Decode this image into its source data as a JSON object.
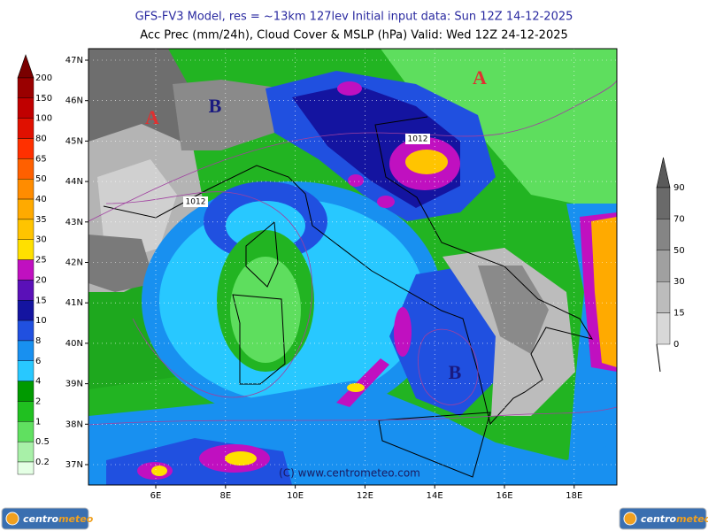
{
  "header": {
    "line1": "GFS-FV3 Model, res = ~13km 127lev    Initial input data: Sun 12Z 14-12-2025",
    "line2": "Acc Prec (mm/24h), Cloud Cover & MSLP (hPa)  Valid: Wed 12Z 24-12-2025"
  },
  "precip_legend": {
    "top_color": "#7a0000",
    "levels": [
      {
        "value": 200,
        "color": "#9a0000"
      },
      {
        "value": 150,
        "color": "#c00000"
      },
      {
        "value": 100,
        "color": "#e01000"
      },
      {
        "value": 80,
        "color": "#ff3000"
      },
      {
        "value": 65,
        "color": "#ff6000"
      },
      {
        "value": 50,
        "color": "#ff8c00"
      },
      {
        "value": 40,
        "color": "#ffaa00"
      },
      {
        "value": 35,
        "color": "#ffc400"
      },
      {
        "value": 30,
        "color": "#ffe000"
      },
      {
        "value": 25,
        "color": "#c010c0"
      },
      {
        "value": 20,
        "color": "#5a10b8"
      },
      {
        "value": 15,
        "color": "#1414a0"
      },
      {
        "value": 10,
        "color": "#2050e0"
      },
      {
        "value": 8,
        "color": "#1890f0"
      },
      {
        "value": 6,
        "color": "#28c8ff"
      },
      {
        "value": 4,
        "color": "#009a00"
      },
      {
        "value": 2,
        "color": "#20c020"
      },
      {
        "value": 1,
        "color": "#60e060"
      },
      {
        "value": 0.5,
        "color": "#a8f0a8"
      },
      {
        "value": 0.2,
        "color": "#e4ffe4"
      }
    ]
  },
  "cloud_legend": {
    "top_color": "#5a5a5a",
    "levels": [
      {
        "value": 90,
        "color": "#6a6a6a"
      },
      {
        "value": 70,
        "color": "#858585"
      },
      {
        "value": 50,
        "color": "#a0a0a0"
      },
      {
        "value": 30,
        "color": "#bcbcbc"
      },
      {
        "value": 15,
        "color": "#d8d8d8"
      },
      {
        "value": 0,
        "color": "#f4f4f4"
      }
    ]
  },
  "axes": {
    "lat": [
      "47N",
      "46N",
      "45N",
      "44N",
      "43N",
      "42N",
      "41N",
      "40N",
      "39N",
      "38N",
      "37N"
    ],
    "lon": [
      "6E",
      "8E",
      "10E",
      "12E",
      "14E",
      "16E",
      "18E"
    ]
  },
  "map_labels": {
    "highs": [
      "A",
      "A"
    ],
    "lows": [
      "B",
      "B"
    ],
    "isobars": [
      "1012",
      "1012"
    ]
  },
  "watermark": "(C) www.centrometeo.com",
  "logo": {
    "part1": "centro",
    "part2": "meteo"
  }
}
